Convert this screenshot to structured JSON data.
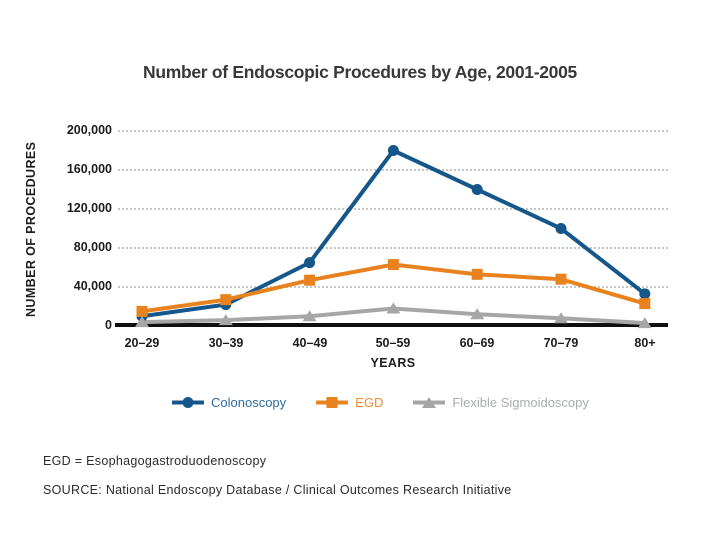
{
  "title": "Number of Endoscopic Procedures by Age, 2001-2005",
  "chart_data": {
    "type": "line",
    "title": "Number of Endoscopic Procedures by Age, 2001-2005",
    "categories": [
      "20–29",
      "30–39",
      "40–49",
      "50–59",
      "60–69",
      "70–79",
      "80+"
    ],
    "xlabel": "YEARS",
    "ylabel": "NUMBER OF PROCEDURES",
    "ylim": [
      0,
      200000
    ],
    "y_ticks": [
      "200,000",
      "160,000",
      "120,000",
      "80,000",
      "40,000",
      "0"
    ],
    "y_tick_values": [
      200000,
      160000,
      120000,
      80000,
      40000,
      0
    ],
    "grid": "horizontal-dotted",
    "legend_position": "bottom",
    "series": [
      {
        "name": "Colonoscopy",
        "marker": "circle",
        "color": "#15578B",
        "label_color": "#2E6C9C",
        "values": [
          10000,
          22000,
          65000,
          180000,
          140000,
          100000,
          33000
        ]
      },
      {
        "name": "EGD",
        "marker": "square",
        "color": "#E8821E",
        "label_color": "#EE8D2B",
        "values": [
          15000,
          27000,
          47000,
          63000,
          53000,
          48000,
          23000
        ]
      },
      {
        "name": "Flexible Sigmoidoscopy",
        "marker": "triangle",
        "color": "#A6A6A6",
        "label_color": "#A9ACB0",
        "values": [
          4000,
          6000,
          10000,
          18000,
          12000,
          8000,
          3000
        ]
      }
    ]
  },
  "footnotes": {
    "abbreviation": "EGD = Esophagogastroduodenoscopy",
    "source": "SOURCE: National Endoscopy Database / Clinical Outcomes Research Initiative"
  }
}
